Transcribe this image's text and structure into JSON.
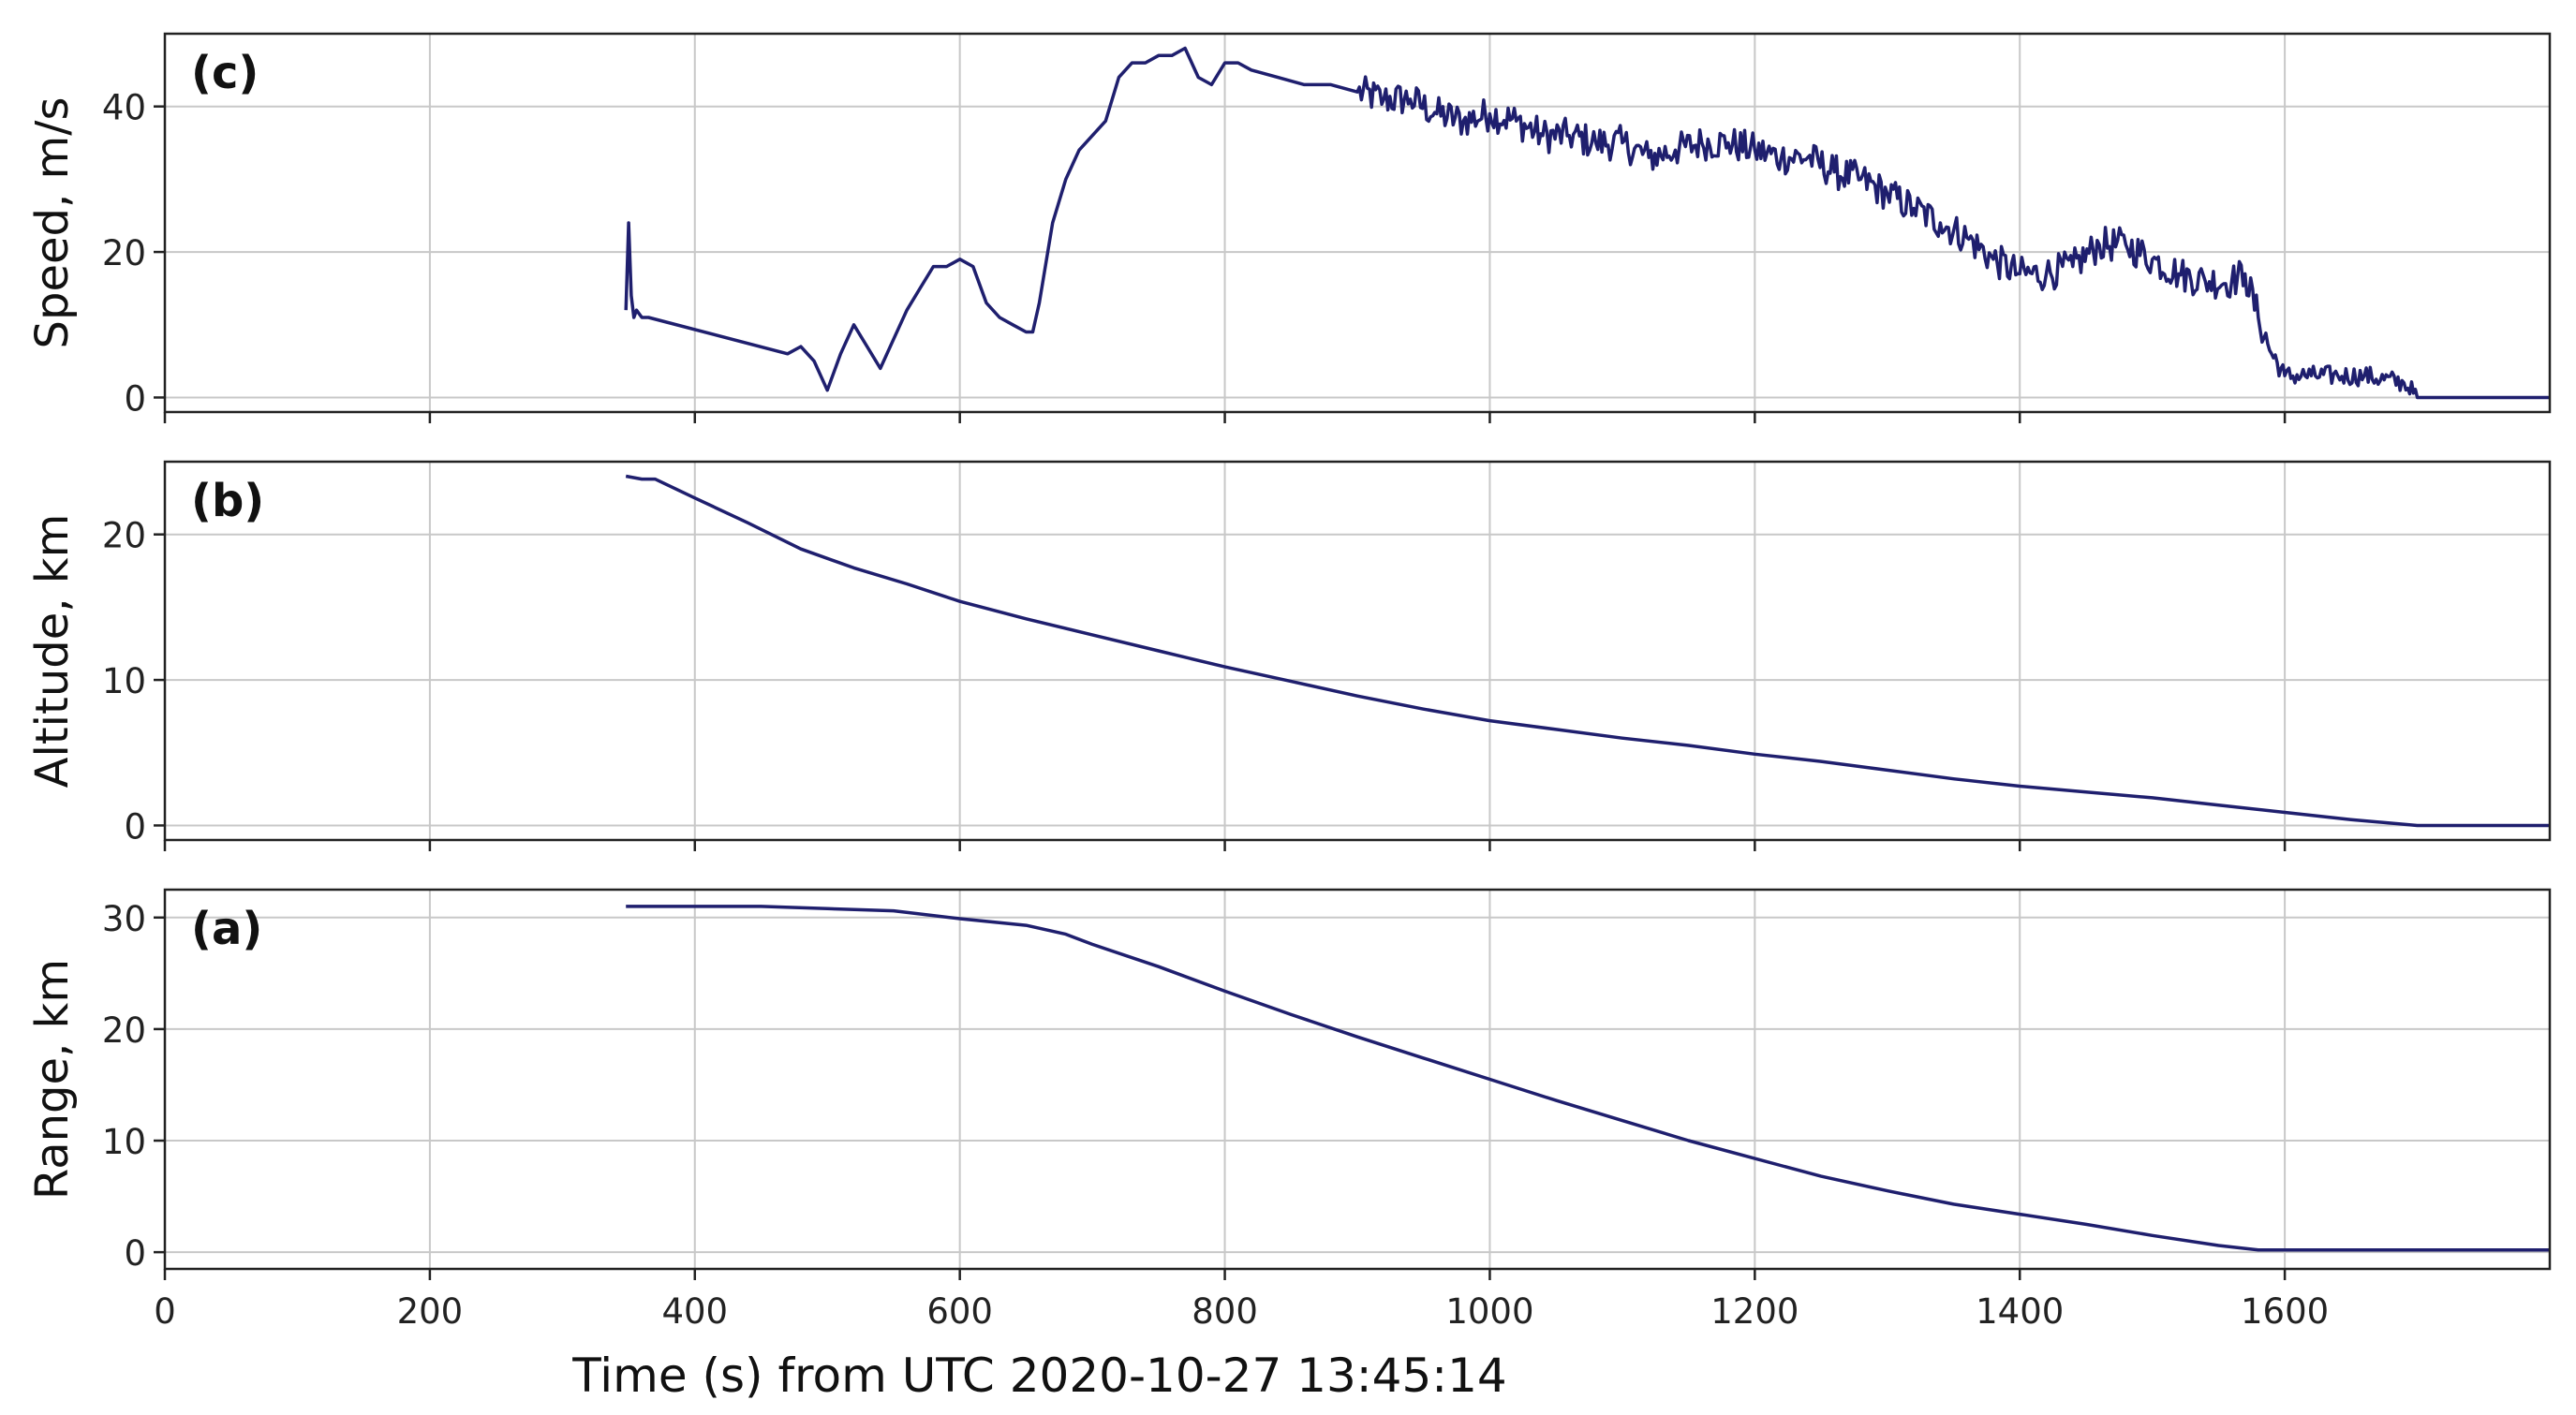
{
  "figure": {
    "xlabel": "Time (s) from UTC 2020-10-27 13:45:14"
  },
  "chart_data": [
    {
      "type": "line",
      "panel_label": "(c)",
      "ylabel": "Speed, m/s",
      "xlim": [
        0,
        1800
      ],
      "ylim": [
        -2,
        50
      ],
      "xticks": [
        0,
        200,
        400,
        600,
        800,
        1000,
        1200,
        1400,
        1600
      ],
      "yticks": [
        0,
        20,
        40
      ],
      "grid": true,
      "line_color": "#1f1f6e",
      "noise_segments": [
        [
          900,
          1700
        ]
      ],
      "x": [
        348,
        350,
        352,
        354,
        356,
        360,
        365,
        470,
        480,
        490,
        500,
        510,
        520,
        530,
        540,
        550,
        560,
        570,
        580,
        590,
        600,
        610,
        620,
        630,
        640,
        650,
        655,
        660,
        670,
        680,
        690,
        700,
        710,
        720,
        730,
        740,
        750,
        760,
        770,
        780,
        790,
        800,
        810,
        820,
        840,
        860,
        880,
        900,
        920,
        940,
        960,
        980,
        1000,
        1020,
        1040,
        1060,
        1080,
        1100,
        1120,
        1140,
        1160,
        1180,
        1200,
        1220,
        1240,
        1260,
        1280,
        1300,
        1320,
        1340,
        1360,
        1380,
        1400,
        1420,
        1440,
        1460,
        1480,
        1500,
        1520,
        1540,
        1560,
        1570,
        1580,
        1590,
        1600,
        1620,
        1640,
        1660,
        1690,
        1700,
        1800
      ],
      "y": [
        12,
        24,
        14,
        11,
        12,
        11,
        11,
        6,
        7,
        5,
        1,
        6,
        10,
        7,
        4,
        8,
        12,
        15,
        18,
        18,
        19,
        18,
        13,
        11,
        10,
        9,
        9,
        13,
        24,
        30,
        34,
        36,
        38,
        44,
        46,
        46,
        47,
        47,
        48,
        44,
        43,
        46,
        46,
        45,
        44,
        43,
        43,
        42,
        41,
        41,
        39,
        38,
        39,
        38,
        36,
        36,
        35,
        35,
        33,
        34,
        35,
        35,
        34,
        33,
        33,
        31,
        30,
        28,
        26,
        24,
        22,
        19,
        17,
        17,
        18,
        21,
        21,
        19,
        17,
        16,
        16,
        17,
        11,
        6,
        3,
        3,
        3,
        3,
        2,
        0,
        0
      ]
    },
    {
      "type": "line",
      "panel_label": "(b)",
      "ylabel": "Altitude, km",
      "xlim": [
        0,
        1800
      ],
      "ylim": [
        -1,
        25
      ],
      "xticks": [
        0,
        200,
        400,
        600,
        800,
        1000,
        1200,
        1400,
        1600
      ],
      "yticks": [
        0,
        10,
        20
      ],
      "grid": true,
      "line_color": "#1f1f6e",
      "x": [
        348,
        360,
        370,
        400,
        440,
        480,
        520,
        560,
        600,
        650,
        700,
        750,
        800,
        850,
        900,
        950,
        1000,
        1050,
        1100,
        1150,
        1200,
        1250,
        1300,
        1350,
        1400,
        1450,
        1500,
        1550,
        1600,
        1650,
        1700,
        1800
      ],
      "y": [
        24,
        23.8,
        23.8,
        22.5,
        20.8,
        19.0,
        17.7,
        16.6,
        15.4,
        14.2,
        13.1,
        12.0,
        10.9,
        9.9,
        8.9,
        8.0,
        7.2,
        6.6,
        6.0,
        5.5,
        4.9,
        4.4,
        3.8,
        3.2,
        2.7,
        2.3,
        1.9,
        1.4,
        0.9,
        0.4,
        0.0,
        0.0
      ]
    },
    {
      "type": "line",
      "panel_label": "(a)",
      "ylabel": "Range, km",
      "xlim": [
        0,
        1800
      ],
      "ylim": [
        -1.5,
        32.5
      ],
      "xticks": [
        0,
        200,
        400,
        600,
        800,
        1000,
        1200,
        1400,
        1600
      ],
      "yticks": [
        0,
        10,
        20,
        30
      ],
      "grid": true,
      "line_color": "#1f1f6e",
      "x": [
        348,
        400,
        450,
        500,
        550,
        600,
        650,
        680,
        700,
        750,
        800,
        850,
        900,
        950,
        1000,
        1050,
        1100,
        1150,
        1200,
        1250,
        1300,
        1350,
        1400,
        1450,
        1500,
        1550,
        1580,
        1600,
        1700,
        1800
      ],
      "y": [
        31,
        31,
        31,
        30.8,
        30.6,
        29.9,
        29.3,
        28.5,
        27.6,
        25.6,
        23.4,
        21.3,
        19.3,
        17.4,
        15.5,
        13.6,
        11.8,
        10.0,
        8.4,
        6.8,
        5.5,
        4.3,
        3.4,
        2.5,
        1.5,
        0.6,
        0.2,
        0.2,
        0.2,
        0.2
      ]
    }
  ]
}
